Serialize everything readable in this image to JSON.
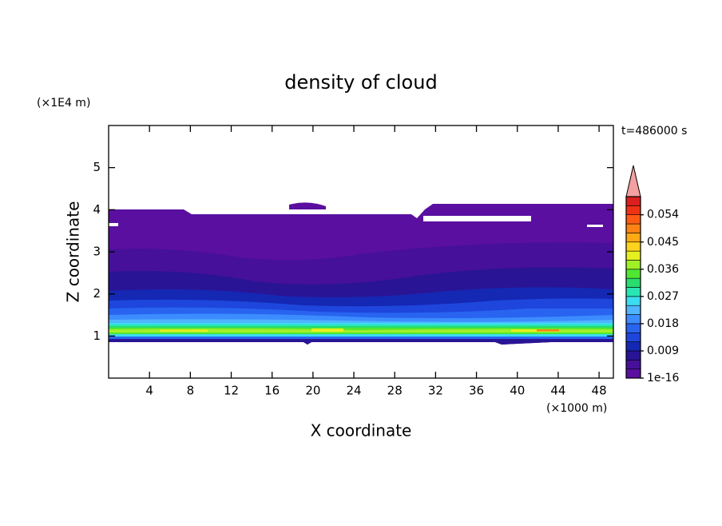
{
  "chart_data": {
    "type": "contour",
    "title": "density of cloud",
    "time_label": "t=486000 s",
    "x_label": "X coordinate",
    "y_label": "Z coordinate",
    "x_unit": "(×1000 m)",
    "y_unit": "(×1E4 m)",
    "xlim": [
      0,
      49.4
    ],
    "xticks": [
      4,
      8,
      12,
      16,
      20,
      24,
      28,
      32,
      36,
      40,
      44,
      48
    ],
    "ylim": [
      0,
      6
    ],
    "yticks": [
      1,
      2,
      3,
      4,
      5
    ],
    "colorbar": {
      "lim": [
        0,
        0.06
      ],
      "ticks": [
        1e-16,
        0.009,
        0.018,
        0.027,
        0.036,
        0.045,
        0.054
      ],
      "colors": [
        "#5a0fa0",
        "#46109a",
        "#2a1496",
        "#1428b4",
        "#1e46dc",
        "#2864f0",
        "#3c8cff",
        "#50b4ff",
        "#3cdcf0",
        "#28e6b4",
        "#28dc6e",
        "#50e632",
        "#a0f028",
        "#e6f01e",
        "#ffd21e",
        "#ffaa14",
        "#ff8214",
        "#ff5a14",
        "#f03214",
        "#dc1e1e"
      ],
      "extend_color": "#f4a0a0"
    }
  }
}
